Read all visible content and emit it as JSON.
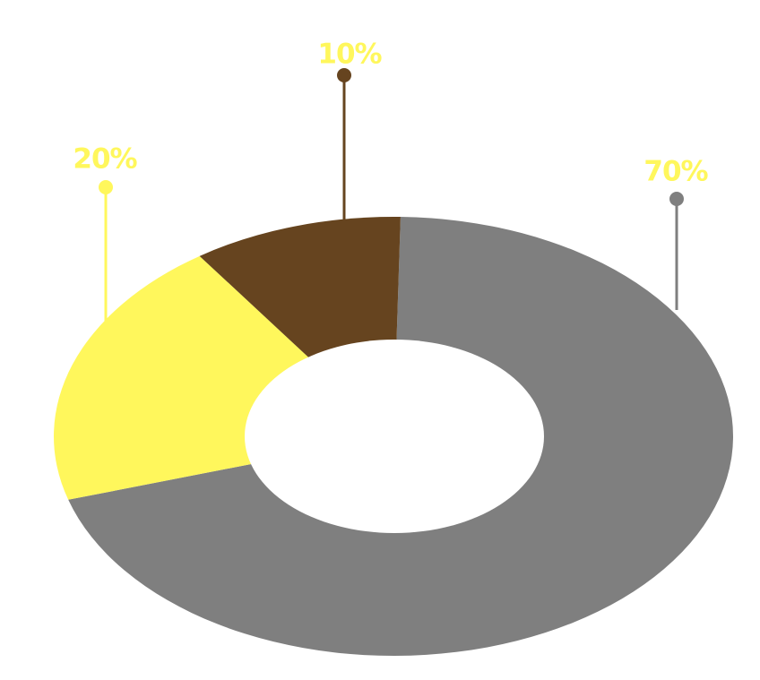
{
  "chart_data": {
    "type": "pie",
    "style": "donut",
    "slices": [
      {
        "label": "70%",
        "value": 70,
        "color": "#7f7f7f",
        "label_color": "#fff75c"
      },
      {
        "label": "20%",
        "value": 20,
        "color": "#fff75c",
        "label_color": "#fff75c"
      },
      {
        "label": "10%",
        "value": 10,
        "color": "#66441f",
        "label_color": "#fff75c"
      }
    ],
    "title": "",
    "legend": "none"
  }
}
